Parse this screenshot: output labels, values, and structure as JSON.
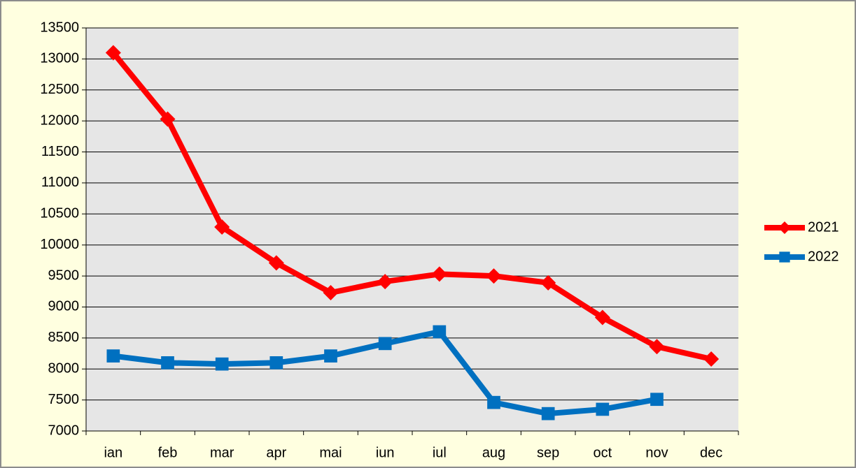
{
  "chart_data": {
    "type": "line",
    "categories": [
      "ian",
      "feb",
      "mar",
      "apr",
      "mai",
      "iun",
      "iul",
      "aug",
      "sep",
      "oct",
      "nov",
      "dec"
    ],
    "series": [
      {
        "name": "2021",
        "color": "#ff0000",
        "marker": "diamond",
        "values": [
          13100,
          12030,
          10290,
          9710,
          9230,
          9410,
          9530,
          9500,
          9390,
          8830,
          8360,
          8160
        ]
      },
      {
        "name": "2022",
        "color": "#0070c0",
        "marker": "square",
        "values": [
          8210,
          8100,
          8080,
          8100,
          8210,
          8410,
          8600,
          7460,
          7280,
          7350,
          7510,
          null
        ]
      }
    ],
    "ylim": [
      7000,
      13500
    ],
    "yticks": [
      7000,
      7500,
      8000,
      8500,
      9000,
      9500,
      10000,
      10500,
      11000,
      11500,
      12000,
      12500,
      13000,
      13500
    ],
    "grid": true,
    "legend": "right"
  }
}
